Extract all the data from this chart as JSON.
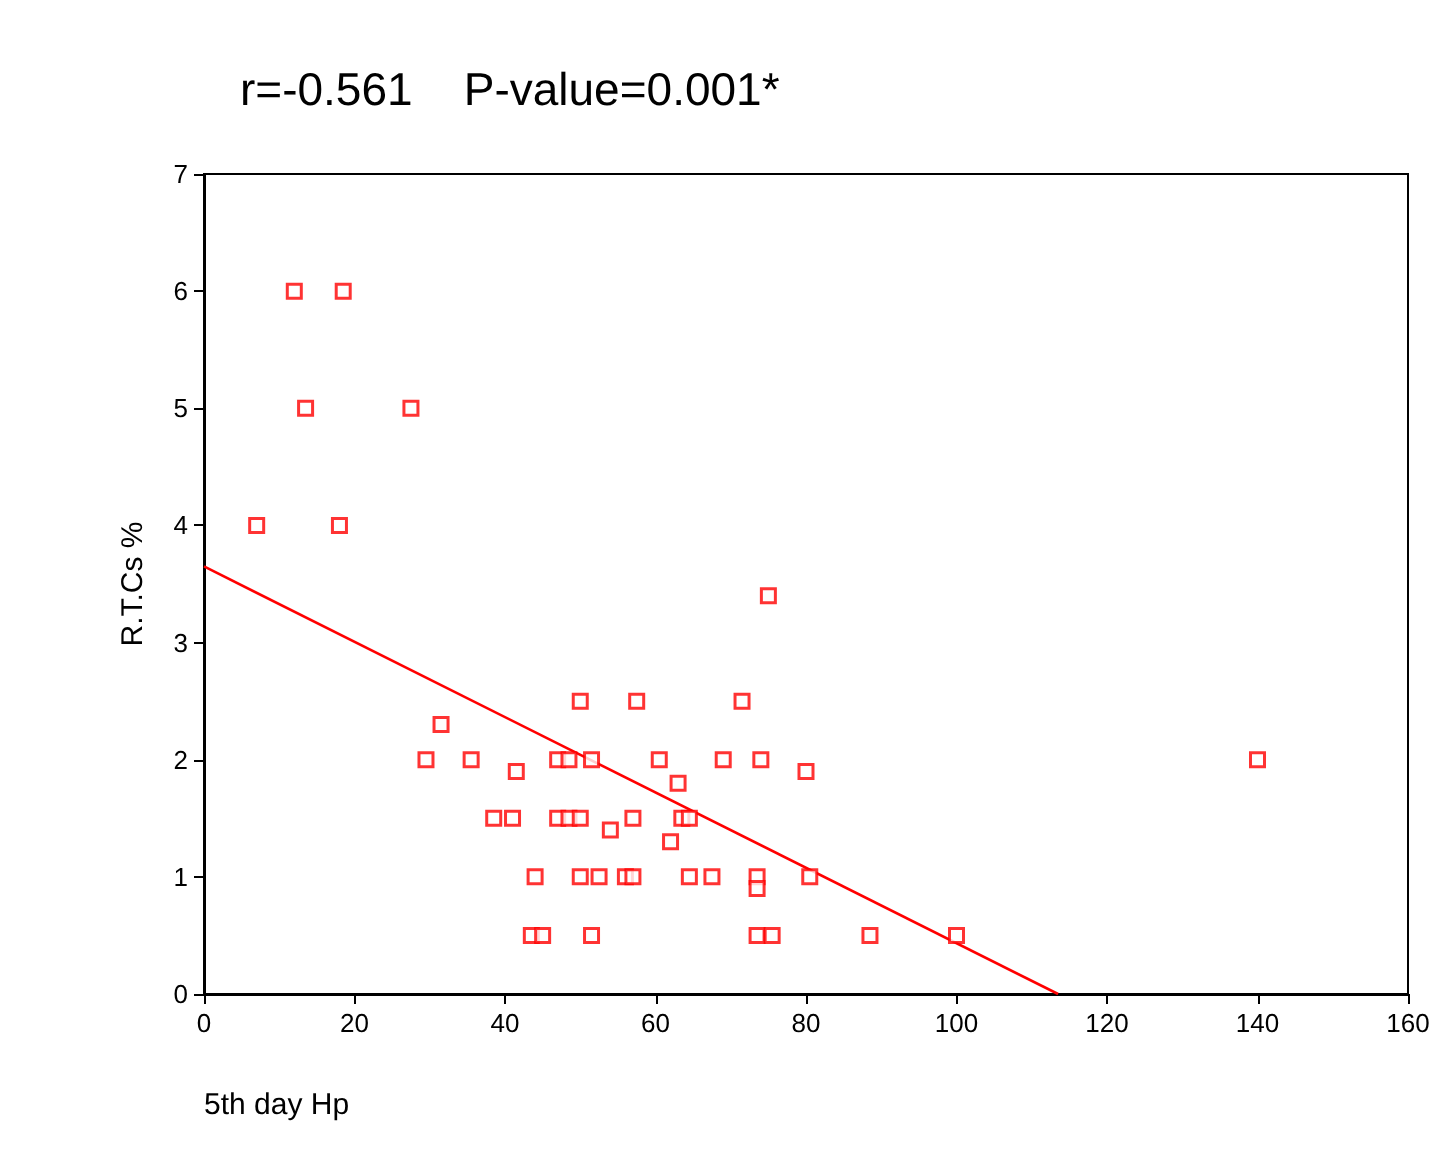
{
  "chart_data": {
    "type": "scatter",
    "title": "r=-0.561    P-value=0.001*",
    "xlabel": "5th day Hp",
    "ylabel": "R.T.Cs %",
    "xlim": [
      0,
      160
    ],
    "xticks": [
      0,
      20,
      40,
      60,
      80,
      100,
      120,
      140,
      160
    ],
    "ylim": [
      0,
      7
    ],
    "yticks": [
      0,
      1,
      2,
      3,
      4,
      5,
      6,
      7
    ],
    "grid": false,
    "marker": "square",
    "series": [
      {
        "color": "#ff0000",
        "x": [
          7,
          12,
          13.5,
          18,
          18.5,
          27.5,
          29.5,
          31.5,
          35.5,
          38.5,
          41,
          41.5,
          43.5,
          44,
          45,
          47,
          47,
          48.5,
          48.5,
          50,
          50,
          50,
          51.5,
          51.5,
          52.5,
          54,
          56,
          57,
          57,
          57.5,
          60.5,
          62,
          63,
          63.5,
          64.5,
          64.5,
          67.5,
          69,
          71.5,
          73.5,
          73.5,
          73.5,
          74,
          75,
          75.5,
          80,
          80.5,
          88.5,
          100,
          140
        ],
        "values": [
          4,
          6,
          5,
          4,
          6,
          5,
          2,
          2.3,
          2,
          1.5,
          1.5,
          1.9,
          0.5,
          1,
          0.5,
          1.5,
          2,
          2,
          1.5,
          2.5,
          1,
          1.5,
          2,
          0.5,
          1,
          1.4,
          1,
          1,
          1.5,
          2.5,
          2,
          1.3,
          1.8,
          1.5,
          1.5,
          1,
          1,
          2,
          2.5,
          1,
          0.9,
          0.5,
          2,
          3.4,
          0.5,
          1.9,
          1,
          0.5,
          0.5,
          2
        ]
      },
      {
        "type": "line",
        "color": "#ff0000",
        "marker": "none",
        "x": [
          0,
          113.5
        ],
        "values": [
          3.65,
          0
        ]
      }
    ]
  }
}
